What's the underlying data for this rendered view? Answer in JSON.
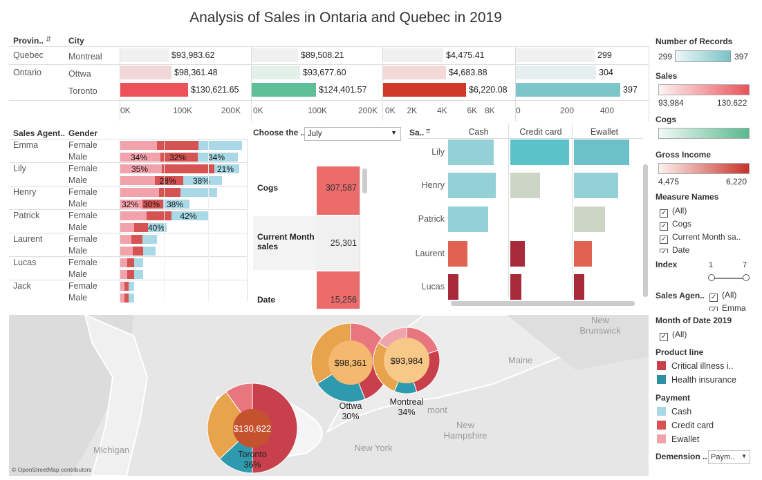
{
  "title": "Analysis of Sales in Ontaria and Quebec in 2019",
  "top_table": {
    "col_province": "Provin..",
    "col_city": "City",
    "rows": [
      {
        "province": "Quebec",
        "city": "Montreal",
        "sales": "$93,983.62",
        "sales_v": 93984,
        "cogs": "$89,508.21",
        "cogs_v": 89508,
        "gi": "$4,475.41",
        "gi_v": 4475,
        "nr": "299",
        "nr_v": 299
      },
      {
        "province": "Ontario",
        "city": "Ottwa",
        "sales": "$98,361.48",
        "sales_v": 98361,
        "cogs": "$93,677.60",
        "cogs_v": 93678,
        "gi": "$4,683.88",
        "gi_v": 4684,
        "nr": "304",
        "nr_v": 304
      },
      {
        "province": "",
        "city": "Toronto",
        "sales": "$130,621.65",
        "sales_v": 130622,
        "cogs": "$124,401.57",
        "cogs_v": 124402,
        "gi": "$6,220.08",
        "gi_v": 6220,
        "nr": "397",
        "nr_v": 397
      }
    ],
    "axis_sales": [
      "0K",
      "100K",
      "200K"
    ],
    "axis_cogs": [
      "0K",
      "100K",
      "200K"
    ],
    "axis_gi": [
      "0K",
      "2K",
      "4K",
      "6K",
      "8K"
    ],
    "axis_nr": [
      "0",
      "200",
      "400"
    ]
  },
  "agents": {
    "col_agent": "Sales Agent..",
    "col_gender": "Gender",
    "rows": [
      {
        "name": "Emma",
        "female": [
          0.3,
          0.34,
          0.36
        ],
        "male": [
          0.34,
          0.32,
          0.34
        ],
        "female_labels": [
          "",
          "",
          ""
        ],
        "male_labels": [
          "34%",
          "32%",
          "34%"
        ],
        "ftot": 175,
        "mtot": 170
      },
      {
        "name": "Lily",
        "female": [
          0.35,
          0.44,
          0.21
        ],
        "male": [
          0.34,
          0.28,
          0.38
        ],
        "female_labels": [
          "35%",
          "",
          "21%"
        ],
        "male_labels": [
          "",
          "28%",
          "38%"
        ],
        "ftot": 172,
        "mtot": 148
      },
      {
        "name": "Henry",
        "female": [
          0.4,
          0.22,
          0.38
        ],
        "male": [
          0.32,
          0.3,
          0.38
        ],
        "female_labels": [
          "",
          "",
          ""
        ],
        "male_labels": [
          "32%",
          "30%",
          "38%"
        ],
        "ftot": 140,
        "mtot": 100
      },
      {
        "name": "Patrick",
        "female": [
          0.3,
          0.28,
          0.42
        ],
        "male": [
          0.3,
          0.3,
          0.4
        ],
        "female_labels": [
          "",
          "",
          "42%"
        ],
        "male_labels": [
          "",
          "",
          "40%"
        ],
        "ftot": 127,
        "mtot": 68
      },
      {
        "name": "Laurent",
        "female": [
          0.3,
          0.3,
          0.4
        ],
        "male": [
          0.35,
          0.3,
          0.35
        ],
        "female_labels": [
          "",
          "",
          ""
        ],
        "male_labels": [
          "",
          "",
          ""
        ],
        "ftot": 52,
        "mtot": 50
      },
      {
        "name": "Lucas",
        "female": [
          0.3,
          0.3,
          0.4
        ],
        "male": [
          0.3,
          0.3,
          0.4
        ],
        "female_labels": [
          "",
          "",
          ""
        ],
        "male_labels": [
          "",
          "",
          ""
        ],
        "ftot": 32,
        "mtot": 32
      },
      {
        "name": "Jack",
        "female": [
          0.3,
          0.3,
          0.4
        ],
        "male": [
          0.3,
          0.3,
          0.4
        ],
        "female_labels": [
          "",
          "",
          ""
        ],
        "male_labels": [
          "",
          "",
          ""
        ],
        "ftot": 20,
        "mtot": 20
      }
    ],
    "gender_f": "Female",
    "gender_m": "Male"
  },
  "month": {
    "label": "Choose the ..",
    "value": "July",
    "items": [
      {
        "name": "Cogs",
        "value": "307,587"
      },
      {
        "name": "Current Month sales",
        "value": "25,301"
      },
      {
        "name": "Date",
        "value": "15,256"
      }
    ]
  },
  "payment_chart": {
    "col_agent": "Sa..",
    "columns": [
      "Cash",
      "Credit card",
      "Ewallet"
    ],
    "agents": [
      "Lily",
      "Henry",
      "Patrick",
      "Laurent",
      "Lucas"
    ],
    "values": [
      [
        0.75,
        0.97,
        0.91
      ],
      [
        0.78,
        0.49,
        0.73
      ],
      [
        0.66,
        0.0,
        0.51
      ],
      [
        0.32,
        0.24,
        0.29
      ],
      [
        0.17,
        0.18,
        0.17
      ]
    ],
    "colors": [
      [
        "#94d1d6",
        "#5ac3ca",
        "#6cc1c8"
      ],
      [
        "#94d1d6",
        "#cdd6c6",
        "#94d1d6"
      ],
      [
        "#94d1d6",
        "#e06251",
        "#cdd6c6"
      ],
      [
        "#e06251",
        "#a72a3a",
        "#e06251"
      ],
      [
        "#a72a3a",
        "#a72a3a",
        "#a72a3a"
      ]
    ]
  },
  "map": {
    "credit": "© OpenStreetMap contributors",
    "labels": [
      "Michigan",
      "New York",
      "New Hampshire",
      "Maine",
      "New Brunswick",
      "mont"
    ],
    "cities": [
      {
        "name": "Ottwa",
        "pct": "30%",
        "center": "$98,361"
      },
      {
        "name": "Montreal",
        "pct": "34%",
        "center": "$93,984"
      },
      {
        "name": "Toronto",
        "pct": "36%",
        "center": "$130,622"
      }
    ]
  },
  "sidebar": {
    "nr_title": "Number of Records",
    "nr_min": "299",
    "nr_max": "397",
    "sales_title": "Sales",
    "sales_min": "93,984",
    "sales_max": "130,622",
    "cogs_title": "Cogs",
    "gi_title": "Gross Income",
    "gi_min": "4,475",
    "gi_max": "6,220",
    "measure_title": "Measure Names",
    "measure_items": [
      "(All)",
      "Cogs",
      "Current Month sa..",
      "Date"
    ],
    "index_title": "Index",
    "index_min": "1",
    "index_max": "7",
    "agent_title": "Sales Agen..",
    "agent_items": [
      "(All)",
      "Emma"
    ],
    "month_title": "Month of Date 2019",
    "month_items": [
      "(All)"
    ],
    "product_title": "Product line",
    "product_items": [
      {
        "label": "Critical illness i..",
        "color": "#c9404d"
      },
      {
        "label": "Health insurance",
        "color": "#2f8fa3"
      }
    ],
    "payment_title": "Payment",
    "payment_items": [
      {
        "label": "Cash",
        "color": "#a9d9e6"
      },
      {
        "label": "Credit card",
        "color": "#d65353"
      },
      {
        "label": "Ewallet",
        "color": "#f1a2ab"
      }
    ],
    "dimension_title": "Demension ..",
    "dimension_value": "Paym.."
  }
}
